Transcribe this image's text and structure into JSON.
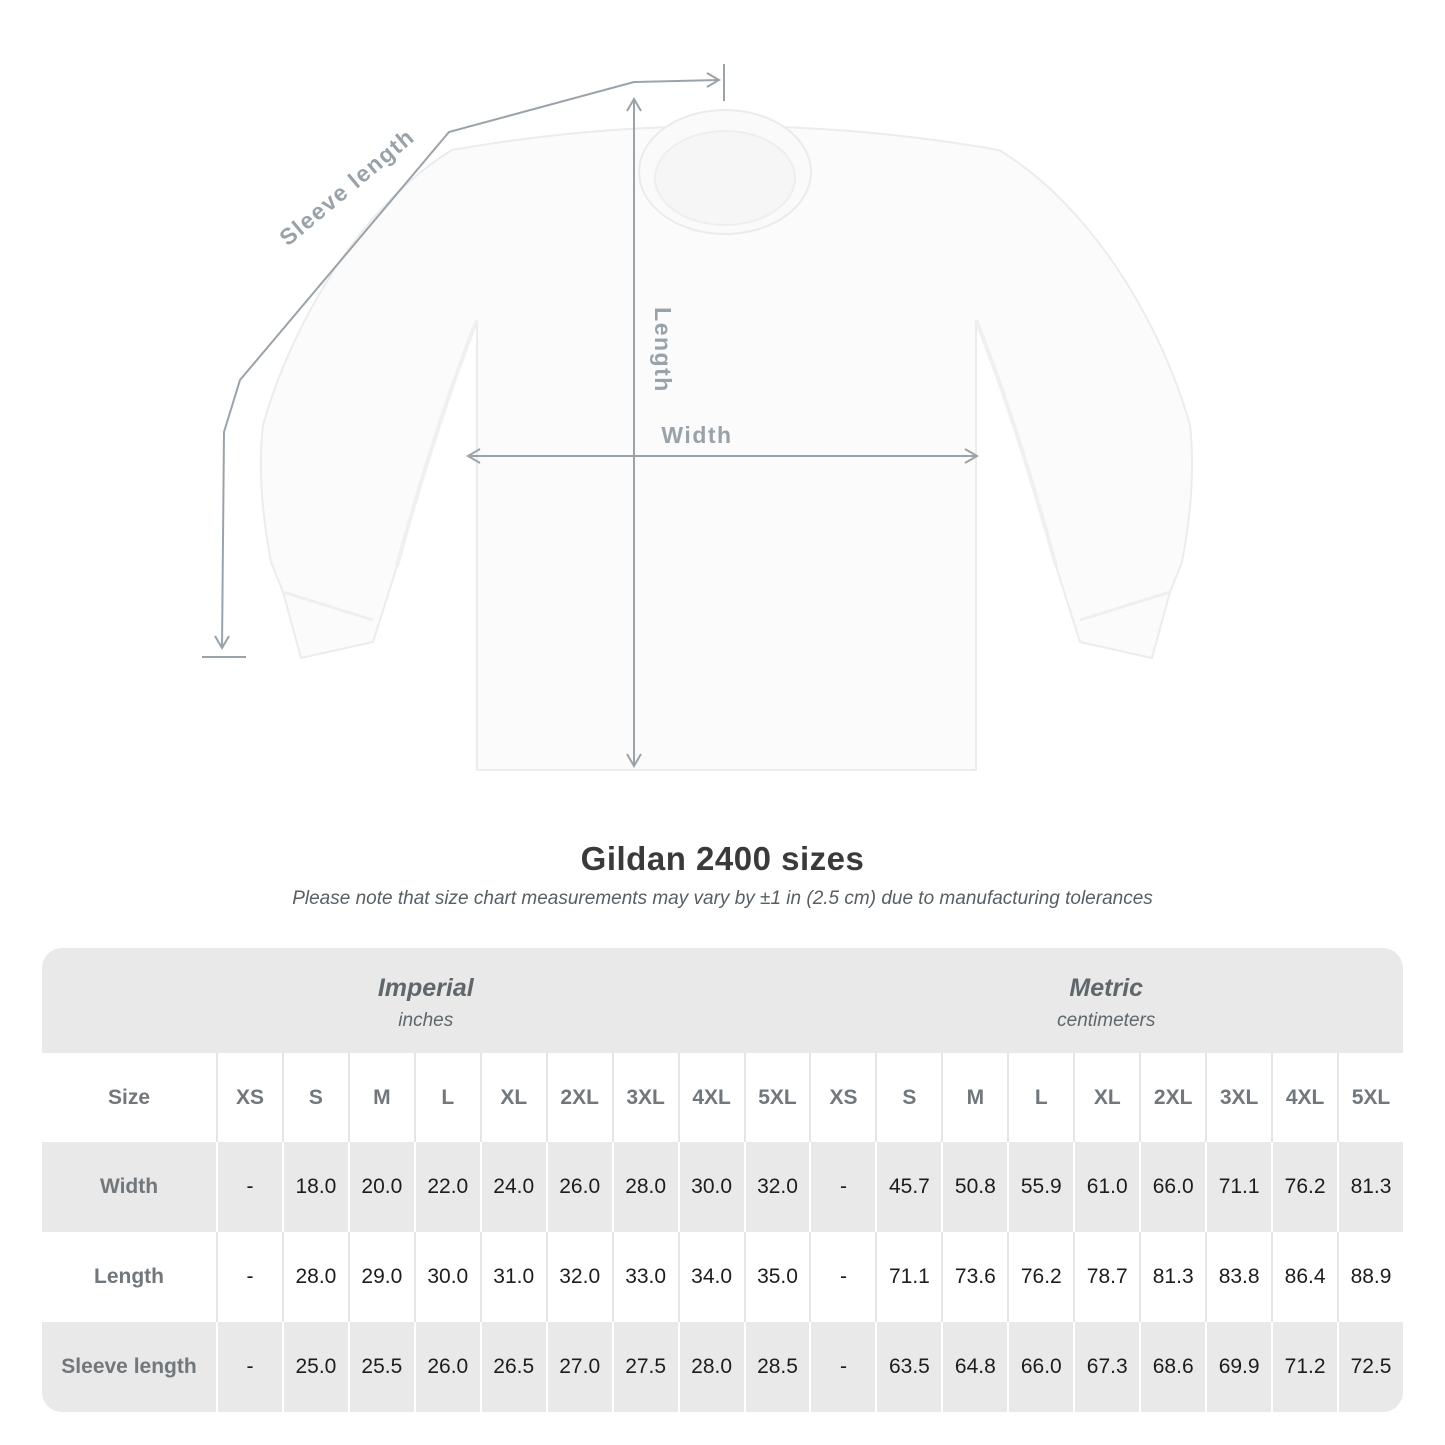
{
  "title": "Gildan 2400 sizes",
  "subtitle": "Please note that size chart measurements may vary by ±1 in (2.5 cm) due to manufacturing tolerances",
  "diagram": {
    "sleeve_label": "Sleeve length",
    "length_label": "Length",
    "width_label": "Width",
    "line_color": "#9ba3aa",
    "label_color": "#9aa2a9"
  },
  "chart_data": {
    "type": "table",
    "title": "Gildan 2400 sizes",
    "note": "Please note that size chart measurements may vary by ±1 in (2.5 cm) due to manufacturing tolerances",
    "size_col_header": "Size",
    "unit_systems": [
      {
        "name": "Imperial",
        "unit": "inches"
      },
      {
        "name": "Metric",
        "unit": "centimeters"
      }
    ],
    "sizes": [
      "XS",
      "S",
      "M",
      "L",
      "XL",
      "2XL",
      "3XL",
      "4XL",
      "5XL"
    ],
    "rows": [
      {
        "label": "Width",
        "imperial": [
          "-",
          "18.0",
          "20.0",
          "22.0",
          "24.0",
          "26.0",
          "28.0",
          "30.0",
          "32.0"
        ],
        "metric": [
          "-",
          "45.7",
          "50.8",
          "55.9",
          "61.0",
          "66.0",
          "71.1",
          "76.2",
          "81.3"
        ]
      },
      {
        "label": "Length",
        "imperial": [
          "-",
          "28.0",
          "29.0",
          "30.0",
          "31.0",
          "32.0",
          "33.0",
          "34.0",
          "35.0"
        ],
        "metric": [
          "-",
          "71.1",
          "73.6",
          "76.2",
          "78.7",
          "81.3",
          "83.8",
          "86.4",
          "88.9"
        ]
      },
      {
        "label": "Sleeve length",
        "imperial": [
          "-",
          "25.0",
          "25.5",
          "26.0",
          "26.5",
          "27.0",
          "27.5",
          "28.0",
          "28.5"
        ],
        "metric": [
          "-",
          "63.5",
          "64.8",
          "66.0",
          "67.3",
          "68.6",
          "69.9",
          "71.2",
          "72.5"
        ]
      }
    ]
  }
}
